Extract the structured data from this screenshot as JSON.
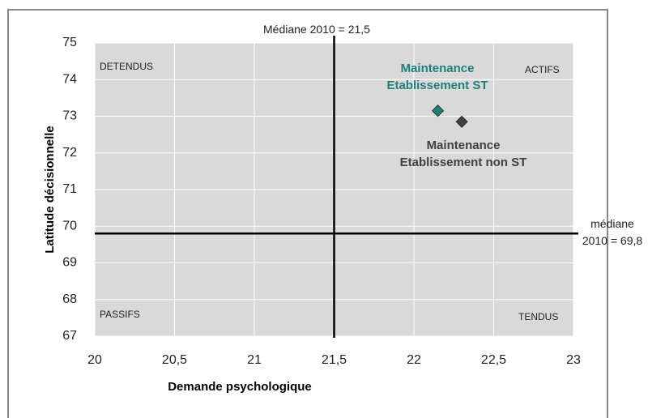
{
  "chart_data": {
    "type": "scatter",
    "xlabel": "Demande psychologique",
    "ylabel": "Latitude décisionnelle",
    "xlim": [
      20,
      23
    ],
    "xticks": [
      20,
      {
        "value": 20.5,
        "label": "20,5"
      },
      21,
      {
        "value": 21.5,
        "label": "21,5"
      },
      22,
      {
        "value": 22.5,
        "label": "22,5"
      },
      23
    ],
    "ylim": [
      67,
      75
    ],
    "yticks": [
      67,
      68,
      69,
      70,
      71,
      72,
      73,
      74,
      75
    ],
    "grid": true,
    "series": [
      {
        "name": "Maintenance Etablissement ST",
        "color": "#1f7f7a",
        "x": [
          22.15
        ],
        "values": [
          73.15
        ]
      },
      {
        "name": "Maintenance Etablissement non ST",
        "color": "#404040",
        "x": [
          22.3
        ],
        "values": [
          72.85
        ]
      }
    ],
    "median_x": {
      "value": 21.5,
      "label": "Médiane 2010 = 21,5"
    },
    "median_y": {
      "value": 69.8,
      "label": "médiane 2010 = 69,8"
    },
    "quadrants": {
      "top_left": "DETENDUS",
      "top_right": "ACTIFS",
      "bottom_left": "PASSIFS",
      "bottom_right": "TENDUS"
    }
  }
}
